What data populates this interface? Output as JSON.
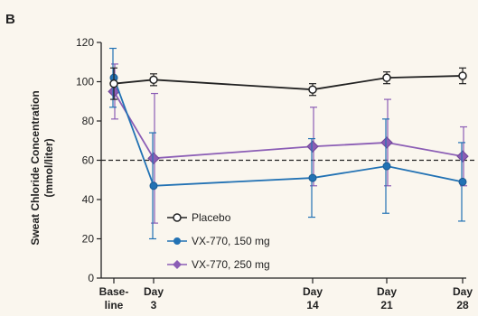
{
  "panel_label": "B",
  "chart_data": {
    "type": "line",
    "ylabel_line1": "Sweat Chloride Concentration",
    "ylabel_line2": "(mmol/liter)",
    "ylim": [
      0,
      120
    ],
    "yticks": [
      "0",
      "20",
      "40",
      "60",
      "80",
      "100",
      "120"
    ],
    "x_positions": [
      0,
      3,
      14,
      21,
      28
    ],
    "x_tick_labels": [
      {
        "lines": [
          "Base-",
          "line"
        ]
      },
      {
        "lines": [
          "Day",
          "3"
        ]
      },
      {
        "lines": [
          "Day",
          "14"
        ]
      },
      {
        "lines": [
          "Day",
          "21"
        ]
      },
      {
        "lines": [
          "Day",
          "28"
        ]
      }
    ],
    "reference_line": {
      "y": 60,
      "style": "dashed"
    },
    "legend_position": "bottom-left",
    "series": [
      {
        "name": "Placebo",
        "marker": "open-circle",
        "color": "#222222",
        "x": [
          0,
          3,
          14,
          21,
          28
        ],
        "y": [
          99,
          101,
          96,
          102,
          103
        ],
        "err": [
          8,
          3,
          3,
          3,
          4
        ]
      },
      {
        "name": "VX-770, 150 mg",
        "marker": "filled-circle",
        "color": "#2272b4",
        "x": [
          0,
          3,
          14,
          21,
          28
        ],
        "y": [
          102,
          47,
          51,
          57,
          49
        ],
        "err": [
          15,
          27,
          20,
          24,
          20
        ]
      },
      {
        "name": "VX-770, 250 mg",
        "marker": "diamond",
        "color": "#8b5db5",
        "x": [
          0,
          3,
          14,
          21,
          28
        ],
        "y": [
          95,
          61,
          67,
          69,
          62
        ],
        "err": [
          14,
          33,
          20,
          22,
          15
        ]
      }
    ]
  }
}
